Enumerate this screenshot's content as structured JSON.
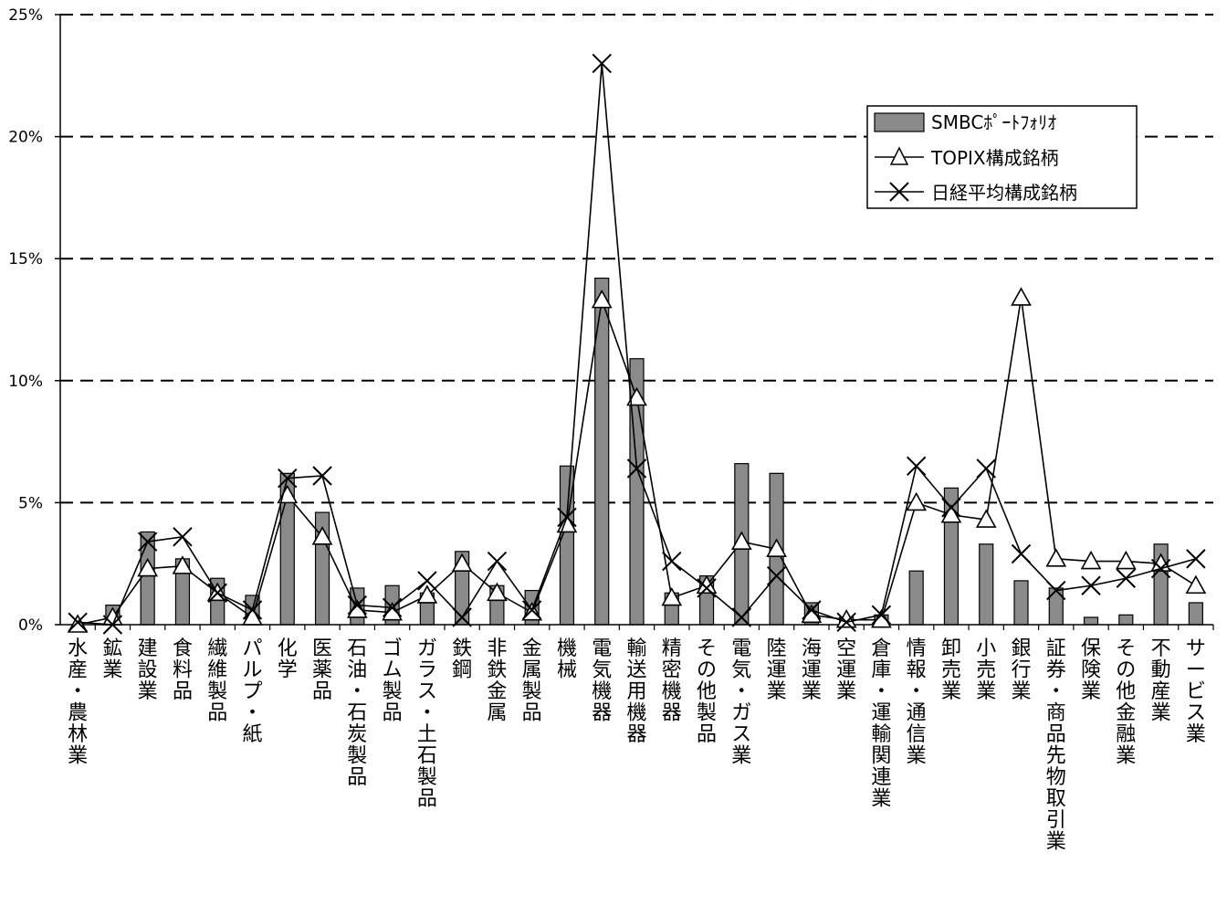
{
  "chart_data": {
    "type": "bar",
    "title": "",
    "xlabel": "",
    "ylabel": "",
    "ylim": [
      0,
      25
    ],
    "yticks": [
      "0%",
      "5%",
      "10%",
      "15%",
      "20%",
      "25%"
    ],
    "grid": "horizontal-dashed",
    "legend_position": "top-right",
    "categories": [
      "水産・農林業",
      "鉱業",
      "建設業",
      "食料品",
      "繊維製品",
      "パルプ・紙",
      "化学",
      "医薬品",
      "石油・石炭製品",
      "ゴム製品",
      "ガラス・土石製品",
      "鉄鋼",
      "非鉄金属",
      "金属製品",
      "機械",
      "電気機器",
      "輸送用機器",
      "精密機器",
      "その他製品",
      "電気・ガス業",
      "陸運業",
      "海運業",
      "空運業",
      "倉庫・運輸関連業",
      "情報・通信業",
      "卸売業",
      "小売業",
      "銀行業",
      "証券・商品先物取引業",
      "保険業",
      "その他金融業",
      "不動産業",
      "サービス業"
    ],
    "series": [
      {
        "name": "SMBCﾎﾟｰﾄﾌｫﾘｵ",
        "kind": "bar",
        "values": [
          0.0,
          0.8,
          3.8,
          2.7,
          1.9,
          1.2,
          6.2,
          4.6,
          1.5,
          1.6,
          1.3,
          3.0,
          1.6,
          1.4,
          6.5,
          14.2,
          10.9,
          1.3,
          2.0,
          6.6,
          6.2,
          0.9,
          0.3,
          0.4,
          2.2,
          5.6,
          3.3,
          1.8,
          1.5,
          0.3,
          0.4,
          3.3,
          0.9
        ]
      },
      {
        "name": "TOPIX構成銘柄",
        "kind": "line",
        "marker": "triangle",
        "values": [
          0.0,
          0.3,
          2.3,
          2.4,
          1.3,
          0.3,
          5.3,
          3.6,
          0.6,
          0.5,
          1.2,
          2.5,
          1.3,
          0.5,
          4.1,
          13.3,
          9.3,
          1.1,
          1.6,
          3.4,
          3.1,
          0.4,
          0.2,
          0.2,
          5.0,
          4.5,
          4.3,
          13.4,
          2.7,
          2.6,
          2.6,
          2.5,
          1.6
        ]
      },
      {
        "name": "日経平均構成銘柄",
        "kind": "line",
        "marker": "x",
        "values": [
          0.1,
          0.0,
          3.4,
          3.6,
          1.3,
          0.6,
          6.0,
          6.1,
          0.8,
          0.7,
          1.8,
          0.3,
          2.6,
          0.6,
          4.4,
          23.0,
          6.4,
          2.6,
          1.5,
          0.3,
          2.0,
          0.6,
          0.1,
          0.4,
          6.5,
          4.8,
          6.4,
          2.9,
          1.4,
          1.6,
          1.9,
          2.3,
          2.7
        ]
      }
    ]
  },
  "colors": {
    "bar_fill": "#8a8a8a",
    "line": "#000000",
    "grid": "#000000"
  }
}
